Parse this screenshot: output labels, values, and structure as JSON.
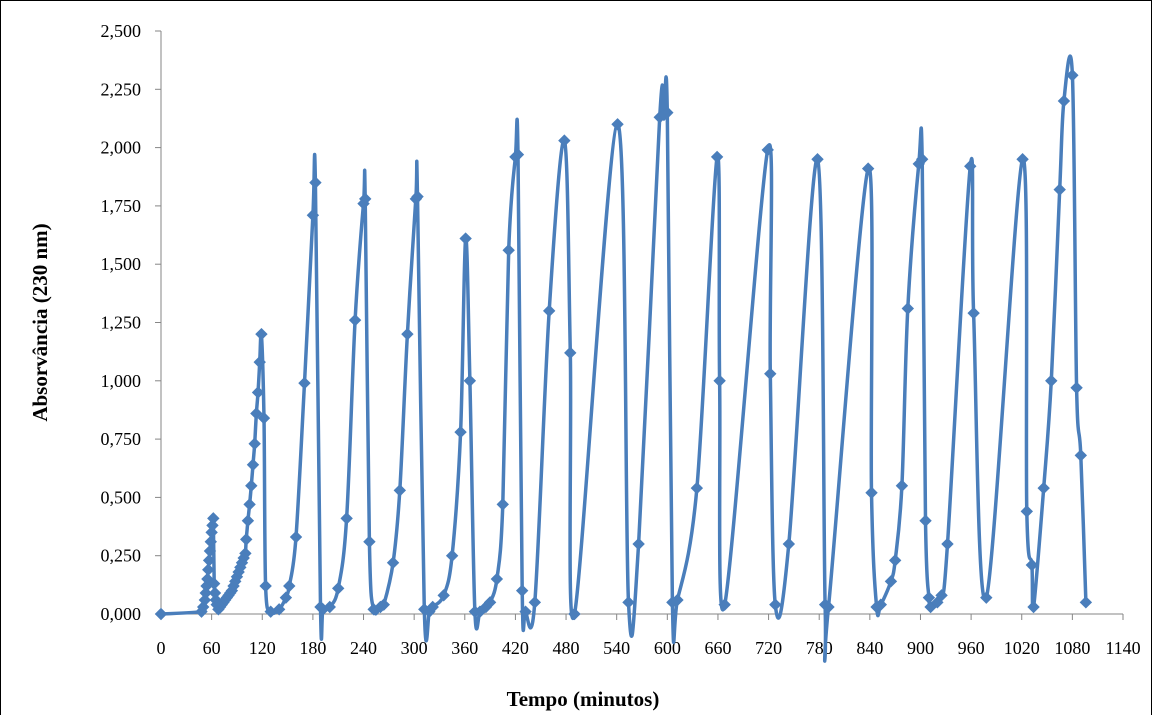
{
  "chart_data": {
    "type": "line",
    "xlabel": "Tempo (minutos)",
    "ylabel": "Absorvância (230 nm)",
    "xlim": [
      0,
      1140
    ],
    "ylim": [
      0,
      2.5
    ],
    "x_ticks": [
      0,
      60,
      120,
      180,
      240,
      300,
      360,
      420,
      480,
      540,
      600,
      660,
      720,
      780,
      840,
      900,
      960,
      1020,
      1080,
      1140
    ],
    "x_tick_labels": [
      "0",
      "60",
      "120",
      "180",
      "240",
      "300",
      "360",
      "420",
      "480",
      "540",
      "600",
      "660",
      "720",
      "780",
      "840",
      "900",
      "960",
      "1020",
      "1080",
      "1140"
    ],
    "y_ticks": [
      0,
      0.25,
      0.5,
      0.75,
      1.0,
      1.25,
      1.5,
      1.75,
      2.0,
      2.25,
      2.5
    ],
    "y_tick_labels": [
      "0,000",
      "0,250",
      "0,500",
      "0,750",
      "1,000",
      "1,250",
      "1,500",
      "1,750",
      "2,000",
      "2,250",
      "2,500"
    ],
    "grid": false,
    "legend": "none",
    "line_color": "#4A7EBB",
    "marker": "diamond",
    "series": [
      {
        "name": "",
        "points": [
          [
            0,
            0.0
          ],
          [
            48,
            0.01
          ],
          [
            50,
            0.03
          ],
          [
            52,
            0.06
          ],
          [
            53,
            0.09
          ],
          [
            54,
            0.12
          ],
          [
            55,
            0.15
          ],
          [
            56,
            0.19
          ],
          [
            57,
            0.23
          ],
          [
            58,
            0.27
          ],
          [
            59,
            0.31
          ],
          [
            60,
            0.35
          ],
          [
            61,
            0.38
          ],
          [
            62,
            0.41
          ],
          [
            63,
            0.13
          ],
          [
            64,
            0.09
          ],
          [
            65,
            0.06
          ],
          [
            66,
            0.04
          ],
          [
            68,
            0.02
          ],
          [
            70,
            0.03
          ],
          [
            72,
            0.04
          ],
          [
            74,
            0.05
          ],
          [
            76,
            0.06
          ],
          [
            78,
            0.07
          ],
          [
            80,
            0.08
          ],
          [
            82,
            0.09
          ],
          [
            84,
            0.1
          ],
          [
            86,
            0.12
          ],
          [
            88,
            0.14
          ],
          [
            90,
            0.16
          ],
          [
            92,
            0.18
          ],
          [
            94,
            0.2
          ],
          [
            96,
            0.22
          ],
          [
            98,
            0.24
          ],
          [
            100,
            0.26
          ],
          [
            101,
            0.32
          ],
          [
            103,
            0.4
          ],
          [
            105,
            0.47
          ],
          [
            107,
            0.55
          ],
          [
            109,
            0.64
          ],
          [
            111,
            0.73
          ],
          [
            113,
            0.86
          ],
          [
            115,
            0.95
          ],
          [
            117,
            1.08
          ],
          [
            119,
            1.2
          ],
          [
            122,
            0.84
          ],
          [
            124,
            0.12
          ],
          [
            130,
            0.01
          ],
          [
            140,
            0.02
          ],
          [
            148,
            0.07
          ],
          [
            152,
            0.12
          ],
          [
            160,
            0.33
          ],
          [
            170,
            0.99
          ],
          [
            180,
            1.71
          ],
          [
            183,
            1.85
          ],
          [
            189,
            0.03
          ],
          [
            192,
            0.02
          ],
          [
            200,
            0.03
          ],
          [
            210,
            0.11
          ],
          [
            220,
            0.41
          ],
          [
            230,
            1.26
          ],
          [
            240,
            1.76
          ],
          [
            242,
            1.78
          ],
          [
            247,
            0.31
          ],
          [
            252,
            0.02
          ],
          [
            260,
            0.03
          ],
          [
            264,
            0.04
          ],
          [
            275,
            0.22
          ],
          [
            283,
            0.53
          ],
          [
            292,
            1.2
          ],
          [
            302,
            1.78
          ],
          [
            304,
            1.79
          ],
          [
            312,
            0.02
          ],
          [
            318,
            0.01
          ],
          [
            322,
            0.03
          ],
          [
            335,
            0.08
          ],
          [
            345,
            0.25
          ],
          [
            355,
            0.78
          ],
          [
            361,
            1.61
          ],
          [
            366,
            1.0
          ],
          [
            372,
            0.01
          ],
          [
            378,
            0.01
          ],
          [
            385,
            0.03
          ],
          [
            390,
            0.05
          ],
          [
            398,
            0.15
          ],
          [
            405,
            0.47
          ],
          [
            412,
            1.56
          ],
          [
            420,
            1.96
          ],
          [
            423,
            1.97
          ],
          [
            428,
            0.1
          ],
          [
            432,
            0.01
          ],
          [
            443,
            0.05
          ],
          [
            460,
            1.3
          ],
          [
            478,
            2.03
          ],
          [
            485,
            1.12
          ],
          [
            490,
            0.0
          ],
          [
            541,
            2.1
          ],
          [
            554,
            0.05
          ],
          [
            566,
            0.3
          ],
          [
            591,
            2.13
          ],
          [
            596,
            2.14
          ],
          [
            600,
            2.15
          ],
          [
            606,
            0.05
          ],
          [
            612,
            0.06
          ],
          [
            635,
            0.54
          ],
          [
            659,
            1.96
          ],
          [
            662,
            1.0
          ],
          [
            668,
            0.04
          ],
          [
            719,
            1.99
          ],
          [
            722,
            1.03
          ],
          [
            728,
            0.04
          ],
          [
            744,
            0.3
          ],
          [
            778,
            1.95
          ],
          [
            787,
            0.04
          ],
          [
            791,
            0.03
          ],
          [
            838,
            1.91
          ],
          [
            842,
            0.52
          ],
          [
            848,
            0.03
          ],
          [
            853,
            0.04
          ],
          [
            865,
            0.14
          ],
          [
            870,
            0.23
          ],
          [
            878,
            0.55
          ],
          [
            885,
            1.31
          ],
          [
            898,
            1.93
          ],
          [
            902,
            1.95
          ],
          [
            906,
            0.4
          ],
          [
            910,
            0.07
          ],
          [
            912,
            0.03
          ],
          [
            920,
            0.05
          ],
          [
            925,
            0.08
          ],
          [
            932,
            0.3
          ],
          [
            959,
            1.92
          ],
          [
            963,
            1.29
          ],
          [
            978,
            0.07
          ],
          [
            1021,
            1.95
          ],
          [
            1026,
            0.44
          ],
          [
            1032,
            0.21
          ],
          [
            1034,
            0.03
          ],
          [
            1046,
            0.54
          ],
          [
            1055,
            1.0
          ],
          [
            1065,
            1.82
          ],
          [
            1070,
            2.2
          ],
          [
            1080,
            2.31
          ],
          [
            1085,
            0.97
          ],
          [
            1090,
            0.68
          ],
          [
            1096,
            0.05
          ]
        ]
      }
    ]
  }
}
